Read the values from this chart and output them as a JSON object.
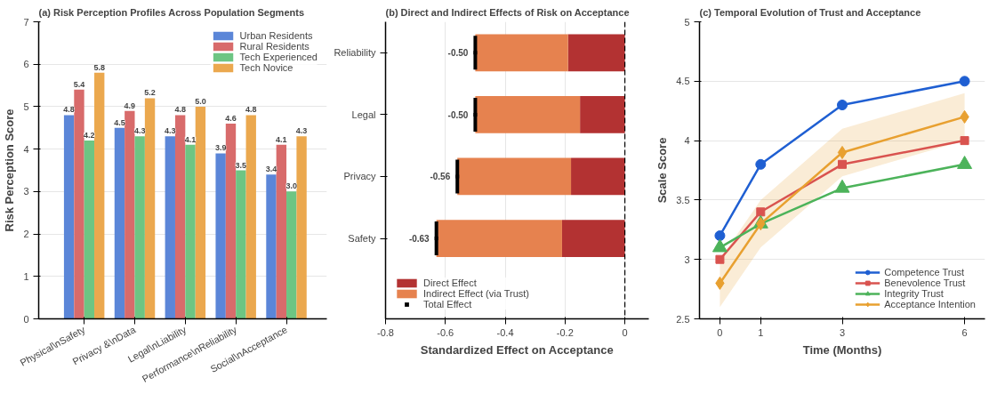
{
  "chart_data": [
    {
      "type": "bar",
      "title": "(a) Risk Perception Profiles Across Population Segments",
      "ylabel": "Risk Perception Score",
      "categories": [
        "Physical\\nSafety",
        "Privacy &\\nData",
        "Legal\\nLiability",
        "Performance\\nReliability",
        "Social\\nAcceptance"
      ],
      "series": [
        {
          "name": "Urban Residents",
          "color": "#5b86d8",
          "values": [
            4.8,
            4.5,
            4.3,
            3.9,
            3.4
          ],
          "value_labels": [
            "4.8",
            "4.5",
            "4.3",
            "3.9",
            "3.4"
          ]
        },
        {
          "name": "Rural Residents",
          "color": "#d86b6b",
          "values": [
            5.4,
            4.9,
            4.8,
            4.6,
            4.1
          ],
          "value_labels": [
            "5.4",
            "4.9",
            "4.8",
            "4.6",
            "4.1"
          ]
        },
        {
          "name": "Tech Experienced",
          "color": "#6dc583",
          "values": [
            4.2,
            4.3,
            4.1,
            3.5,
            3.0
          ],
          "value_labels": [
            "4.2",
            "4.3",
            "4.1",
            "3.5",
            "3.0"
          ]
        },
        {
          "name": "Tech Novice",
          "color": "#eba84e",
          "values": [
            5.8,
            5.2,
            5.0,
            4.8,
            4.3
          ],
          "value_labels": [
            "5.8",
            "5.2",
            "5.0",
            "4.8",
            "4.3"
          ]
        }
      ],
      "ylim": [
        0,
        7
      ],
      "yticks": [
        0,
        1,
        2,
        3,
        4,
        5,
        6,
        7
      ],
      "grid": "y",
      "legend": "top right"
    },
    {
      "type": "bar",
      "title": "(b) Direct and Indirect Effects of Risk on Acceptance",
      "xlabel": "Standardized Effect on Acceptance",
      "orientation": "horizontal",
      "stacked": true,
      "categories": [
        "Reliability",
        "Legal",
        "Privacy",
        "Safety"
      ],
      "series": [
        {
          "name": "Direct Effect",
          "color": "#b33232",
          "values": [
            -0.19,
            -0.15,
            -0.18,
            -0.21
          ]
        },
        {
          "name": "Indirect Effect (via Trust)",
          "color": "#e6824f",
          "values": [
            -0.31,
            -0.35,
            -0.38,
            -0.42
          ]
        },
        {
          "name": "Total Effect",
          "type": "scatter",
          "color": "#000000",
          "values": [
            -0.5,
            -0.5,
            -0.56,
            -0.63
          ],
          "value_labels": [
            "-0.50",
            "-0.50",
            "-0.56",
            "-0.63"
          ]
        }
      ],
      "xlim": [
        -0.8,
        0.08
      ],
      "xticks": [
        -0.8,
        -0.6,
        -0.4,
        -0.2,
        0
      ],
      "grid": "x",
      "legend": "bottom left",
      "ref_lines": [
        {
          "axis": "x",
          "value": 0,
          "label": null,
          "color": "#000000",
          "line_style": "dashed"
        }
      ]
    },
    {
      "type": "line",
      "title": "(c) Temporal Evolution of Trust and Acceptance",
      "xlabel": "Time (Months)",
      "ylabel": "Scale Score",
      "x": [
        0,
        1,
        3,
        6
      ],
      "series": [
        {
          "name": "Competence Trust",
          "color": "#1f5fd2",
          "marker": "circle",
          "values": [
            3.2,
            3.8,
            4.3,
            4.5
          ]
        },
        {
          "name": "Benevolence Trust",
          "color": "#d9534f",
          "marker": "square",
          "values": [
            3.0,
            3.4,
            3.8,
            4.0
          ]
        },
        {
          "name": "Integrity Trust",
          "color": "#4cb35a",
          "marker": "triangle",
          "values": [
            3.1,
            3.3,
            3.6,
            3.8
          ]
        },
        {
          "name": "Acceptance Intention",
          "color": "#e8a030",
          "marker": "diamond",
          "values": [
            2.8,
            3.3,
            3.9,
            4.2
          ],
          "lower": [
            2.6,
            3.1,
            3.7,
            4.0
          ],
          "upper": [
            3.0,
            3.5,
            4.1,
            4.4
          ]
        }
      ],
      "xlim": [
        -0.5,
        6.5
      ],
      "xticks": [
        0,
        1,
        3,
        6
      ],
      "ylim": [
        2.5,
        5
      ],
      "yticks": [
        2.5,
        3,
        3.5,
        4,
        4.5,
        5
      ],
      "grid": "y",
      "legend": "bottom right",
      "line_style": "solid"
    }
  ]
}
